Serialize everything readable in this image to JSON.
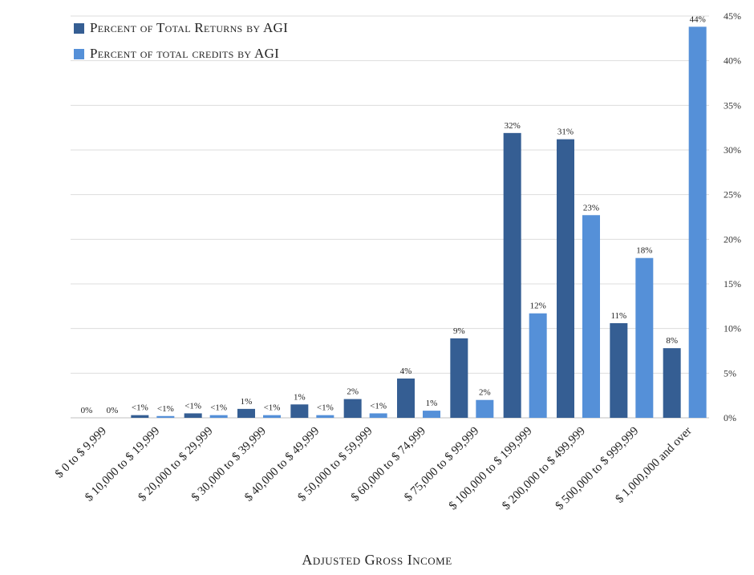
{
  "chart_data": {
    "type": "bar",
    "xlabel": "Adjusted Gross Income",
    "ylabel": "",
    "ylim": [
      0,
      45
    ],
    "y_ticks": [
      "0%",
      "5%",
      "10%",
      "15%",
      "20%",
      "25%",
      "30%",
      "35%",
      "40%",
      "45%"
    ],
    "y_axis_side": "right",
    "grid": true,
    "legend_position": "top-left",
    "categories": [
      "$ 0 to $ 9,999",
      "$ 10,000 to $ 19,999",
      "$ 20,000 to $ 29,999",
      "$ 30,000 to $ 39,999",
      "$ 40,000 to $ 49,999",
      "$ 50,000 to $ 59,999",
      "$ 60,000 to $ 74,999",
      "$ 75,000 to $ 99,999",
      "$ 100,000 to $ 199,999",
      "$ 200,000 to $ 499,999",
      "$ 500,000 to $ 999,999",
      "$ 1,000,000 and over"
    ],
    "series": [
      {
        "name": "Percent of Total Returns by AGI",
        "color": "#355e93",
        "values": [
          0,
          0.3,
          0.5,
          1.0,
          1.5,
          2.1,
          4.4,
          8.9,
          31.9,
          31.2,
          10.6,
          7.8
        ],
        "labels": [
          "0%",
          "<1%",
          "<1%",
          "1%",
          "1%",
          "2%",
          "4%",
          "9%",
          "32%",
          "31%",
          "11%",
          "8%"
        ]
      },
      {
        "name": "Percent of total credits by AGI",
        "color": "#5590d8",
        "values": [
          0,
          0.2,
          0.3,
          0.3,
          0.3,
          0.5,
          0.8,
          2.0,
          11.7,
          22.7,
          17.9,
          43.8
        ],
        "labels": [
          "0%",
          "<1%",
          "<1%",
          "<1%",
          "<1%",
          "<1%",
          "1%",
          "2%",
          "12%",
          "23%",
          "18%",
          "44%"
        ]
      }
    ]
  }
}
